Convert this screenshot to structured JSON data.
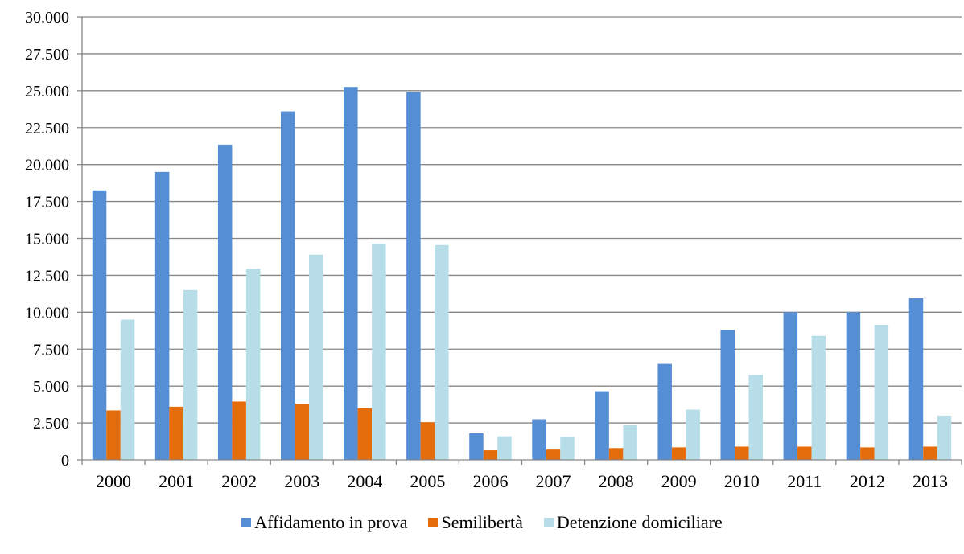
{
  "chart_data": {
    "type": "bar",
    "title": "",
    "xlabel": "",
    "ylabel": "",
    "ylim": [
      0,
      30000
    ],
    "yticks": [
      0,
      2500,
      5000,
      7500,
      10000,
      12500,
      15000,
      17500,
      20000,
      22500,
      25000,
      27500,
      30000
    ],
    "ytick_labels": [
      "0",
      "2.500",
      "5.000",
      "7.500",
      "10.000",
      "12.500",
      "15.000",
      "17.500",
      "20.000",
      "22.500",
      "25.000",
      "27.500",
      "30.000"
    ],
    "grid": true,
    "legend_position": "bottom",
    "categories": [
      "2000",
      "2001",
      "2002",
      "2003",
      "2004",
      "2005",
      "2006",
      "2007",
      "2008",
      "2009",
      "2010",
      "2011",
      "2012",
      "2013"
    ],
    "series": [
      {
        "name": "Affidamento in prova",
        "color": "#558ED5",
        "values": [
          18250,
          19500,
          21350,
          23600,
          25250,
          24900,
          1800,
          2750,
          4650,
          6500,
          8800,
          10000,
          10000,
          10950
        ]
      },
      {
        "name": "Semilibertà",
        "color": "#E46C0A",
        "values": [
          3350,
          3600,
          3950,
          3800,
          3500,
          2550,
          650,
          700,
          800,
          850,
          900,
          900,
          850,
          900
        ]
      },
      {
        "name": "Detenzione domiciliare",
        "color": "#B7DEE8",
        "values": [
          9500,
          11500,
          12950,
          13900,
          14650,
          14550,
          1600,
          1550,
          2350,
          3400,
          5750,
          8400,
          9150,
          3000
        ]
      }
    ]
  }
}
